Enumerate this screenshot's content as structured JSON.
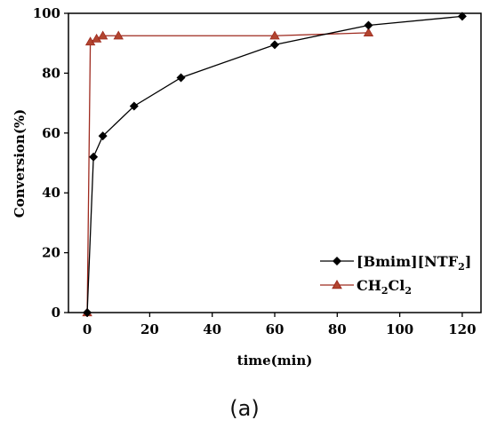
{
  "chart_data": {
    "type": "line",
    "xlabel": "time(min)",
    "ylabel": "Conversion(%)",
    "xlim": [
      -6,
      126
    ],
    "ylim": [
      0,
      100
    ],
    "xticks": [
      0,
      20,
      40,
      60,
      80,
      100,
      120
    ],
    "yticks": [
      0,
      20,
      40,
      60,
      80,
      100
    ],
    "legend_position": "bottom-right",
    "series": [
      {
        "name": "[Bmim][NTF2]",
        "name_main": "[Bmim][NTF",
        "name_sub": "2",
        "name_tail": "]",
        "color": "#000000",
        "marker": "diamond",
        "x": [
          0,
          2,
          5,
          15,
          30,
          60,
          90,
          120
        ],
        "y": [
          0,
          52,
          59,
          69,
          78.5,
          89.5,
          96,
          99
        ]
      },
      {
        "name": "CH2Cl2",
        "name_parts": [
          "CH",
          "2",
          "Cl",
          "2"
        ],
        "color": "#9e2a1f",
        "marker_fill": "#b2452f",
        "marker": "triangle",
        "x": [
          0,
          1,
          3,
          5,
          10,
          60,
          90
        ],
        "y": [
          0,
          90.5,
          91.5,
          92.5,
          92.5,
          92.5,
          93.5
        ]
      }
    ]
  },
  "caption": "(a)"
}
